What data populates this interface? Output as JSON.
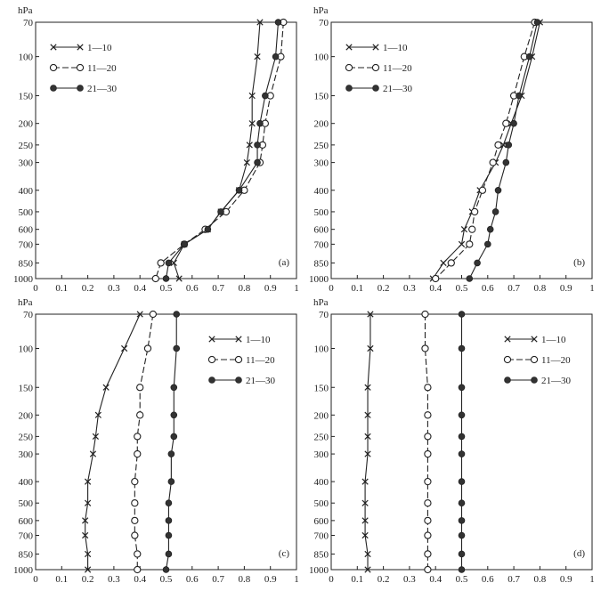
{
  "figure": {
    "pressure_unit": "hPa",
    "pressure_ticks": [
      "70",
      "100",
      "150",
      "200",
      "250",
      "300",
      "400",
      "500",
      "600",
      "700",
      "850",
      "1000"
    ],
    "x_ticks": [
      "0",
      "0.1",
      "0.2",
      "0.3",
      "0.4",
      "0.5",
      "0.6",
      "0.7",
      "0.8",
      "0.9",
      "1"
    ]
  },
  "chart_data": [
    {
      "type": "line",
      "panel_label": "(a)",
      "xlim": [
        0,
        1
      ],
      "ylim": [
        70,
        1000
      ],
      "y_axis": "pressure (log scale, inverted)",
      "y_levels": [
        70,
        100,
        150,
        200,
        250,
        300,
        400,
        500,
        600,
        700,
        850,
        1000
      ],
      "legend_position": "top-left",
      "series": [
        {
          "name": "1—10",
          "marker": "x",
          "dash": "solid",
          "values": [
            0.86,
            0.85,
            0.83,
            0.83,
            0.82,
            0.81,
            0.78,
            0.71,
            0.66,
            0.57,
            0.53,
            0.55
          ]
        },
        {
          "name": "11—20",
          "marker": "circle-open",
          "dash": "dashed",
          "values": [
            0.95,
            0.94,
            0.9,
            0.88,
            0.87,
            0.86,
            0.8,
            0.73,
            0.65,
            0.57,
            0.48,
            0.46
          ]
        },
        {
          "name": "21—30",
          "marker": "circle-filled",
          "dash": "solid",
          "values": [
            0.93,
            0.92,
            0.88,
            0.86,
            0.85,
            0.85,
            0.78,
            0.71,
            0.66,
            0.57,
            0.51,
            0.5
          ]
        }
      ]
    },
    {
      "type": "line",
      "panel_label": "(b)",
      "xlim": [
        0,
        1
      ],
      "ylim": [
        70,
        1000
      ],
      "y_axis": "pressure (log scale, inverted)",
      "y_levels": [
        70,
        100,
        150,
        200,
        250,
        300,
        400,
        500,
        600,
        700,
        850,
        1000
      ],
      "legend_position": "top-left",
      "series": [
        {
          "name": "1—10",
          "marker": "x",
          "dash": "solid",
          "values": [
            0.8,
            0.77,
            0.73,
            0.69,
            0.66,
            0.63,
            0.57,
            0.54,
            0.51,
            0.5,
            0.43,
            0.39
          ]
        },
        {
          "name": "11—20",
          "marker": "circle-open",
          "dash": "dashed",
          "values": [
            0.78,
            0.74,
            0.7,
            0.67,
            0.64,
            0.62,
            0.58,
            0.55,
            0.54,
            0.53,
            0.46,
            0.4
          ]
        },
        {
          "name": "21—30",
          "marker": "circle-filled",
          "dash": "solid",
          "values": [
            0.79,
            0.76,
            0.72,
            0.7,
            0.68,
            0.67,
            0.64,
            0.63,
            0.61,
            0.6,
            0.56,
            0.53
          ]
        }
      ]
    },
    {
      "type": "line",
      "panel_label": "(c)",
      "xlim": [
        0,
        1
      ],
      "ylim": [
        70,
        1000
      ],
      "y_axis": "pressure (log scale, inverted)",
      "y_levels": [
        70,
        100,
        150,
        200,
        250,
        300,
        400,
        500,
        600,
        700,
        850,
        1000
      ],
      "legend_position": "right",
      "series": [
        {
          "name": "1—10",
          "marker": "x",
          "dash": "solid",
          "values": [
            0.4,
            0.34,
            0.27,
            0.24,
            0.23,
            0.22,
            0.2,
            0.2,
            0.19,
            0.19,
            0.2,
            0.2
          ]
        },
        {
          "name": "11—20",
          "marker": "circle-open",
          "dash": "dashed",
          "values": [
            0.45,
            0.43,
            0.4,
            0.4,
            0.39,
            0.39,
            0.38,
            0.38,
            0.38,
            0.38,
            0.39,
            0.39
          ]
        },
        {
          "name": "21—30",
          "marker": "circle-filled",
          "dash": "solid",
          "values": [
            0.54,
            0.54,
            0.53,
            0.53,
            0.53,
            0.52,
            0.52,
            0.51,
            0.51,
            0.51,
            0.51,
            0.5
          ]
        }
      ]
    },
    {
      "type": "line",
      "panel_label": "(d)",
      "xlim": [
        0,
        1
      ],
      "ylim": [
        70,
        1000
      ],
      "y_axis": "pressure (log scale, inverted)",
      "y_levels": [
        70,
        100,
        150,
        200,
        250,
        300,
        400,
        500,
        600,
        700,
        850,
        1000
      ],
      "legend_position": "right",
      "series": [
        {
          "name": "1—10",
          "marker": "x",
          "dash": "solid",
          "values": [
            0.15,
            0.15,
            0.14,
            0.14,
            0.14,
            0.14,
            0.13,
            0.13,
            0.13,
            0.13,
            0.14,
            0.14
          ]
        },
        {
          "name": "11—20",
          "marker": "circle-open",
          "dash": "dashed",
          "values": [
            0.36,
            0.36,
            0.37,
            0.37,
            0.37,
            0.37,
            0.37,
            0.37,
            0.37,
            0.37,
            0.37,
            0.37
          ]
        },
        {
          "name": "21—30",
          "marker": "circle-filled",
          "dash": "solid",
          "values": [
            0.5,
            0.5,
            0.5,
            0.5,
            0.5,
            0.5,
            0.5,
            0.5,
            0.5,
            0.5,
            0.5,
            0.5
          ]
        }
      ]
    }
  ]
}
